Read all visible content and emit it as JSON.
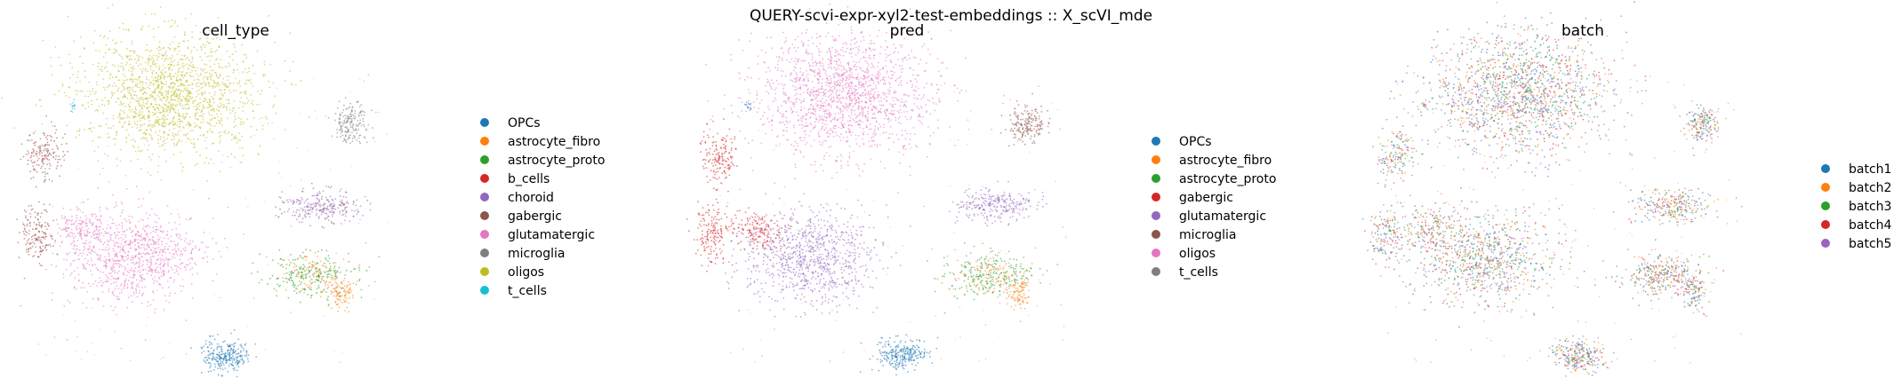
{
  "figure": {
    "suptitle": "QUERY-scvi-expr-xyl2-test-embeddings :: X_scVI_mde"
  },
  "chart_data": [
    {
      "type": "scatter",
      "title": "cell_type",
      "legend_position": "right",
      "legend": [
        {
          "name": "OPCs",
          "color": "#1f77b4"
        },
        {
          "name": "astrocyte_fibro",
          "color": "#ff7f0e"
        },
        {
          "name": "astrocyte_proto",
          "color": "#2ca02c"
        },
        {
          "name": "b_cells",
          "color": "#d62728"
        },
        {
          "name": "choroid",
          "color": "#9467bd"
        },
        {
          "name": "gabergic",
          "color": "#8c564b"
        },
        {
          "name": "glutamatergic",
          "color": "#e377c2"
        },
        {
          "name": "microglia",
          "color": "#7f7f7f"
        },
        {
          "name": "oligos",
          "color": "#bcbd22"
        },
        {
          "name": "t_cells",
          "color": "#17becf"
        }
      ],
      "clusters": [
        {
          "label": "oligos",
          "color": "#bcbd22"
        },
        {
          "label": "glutamatergic",
          "color": "#e377c2"
        },
        {
          "label": "OPCs",
          "color": "#1f77b4"
        },
        {
          "label": "astrocyte_proto",
          "color": "#2ca02c"
        },
        {
          "label": "astrocyte_fibro",
          "color": "#ff7f0e"
        },
        {
          "label": "gabergic",
          "color": "#8c564b"
        },
        {
          "label": "microglia",
          "color": "#7f7f7f"
        },
        {
          "label": "b_cells",
          "color": "#d62728"
        },
        {
          "label": "choroid",
          "color": "#9467bd"
        },
        {
          "label": "t_cells",
          "color": "#17becf"
        }
      ],
      "axes_visible": false
    },
    {
      "type": "scatter",
      "title": "pred",
      "legend_position": "right",
      "legend": [
        {
          "name": "OPCs",
          "color": "#1f77b4"
        },
        {
          "name": "astrocyte_fibro",
          "color": "#ff7f0e"
        },
        {
          "name": "astrocyte_proto",
          "color": "#2ca02c"
        },
        {
          "name": "gabergic",
          "color": "#d62728"
        },
        {
          "name": "glutamatergic",
          "color": "#9467bd"
        },
        {
          "name": "microglia",
          "color": "#8c564b"
        },
        {
          "name": "oligos",
          "color": "#e377c2"
        },
        {
          "name": "t_cells",
          "color": "#7f7f7f"
        }
      ],
      "axes_visible": false
    },
    {
      "type": "scatter",
      "title": "batch",
      "legend_position": "right",
      "legend": [
        {
          "name": "batch1",
          "color": "#1f77b4"
        },
        {
          "name": "batch2",
          "color": "#ff7f0e"
        },
        {
          "name": "batch3",
          "color": "#2ca02c"
        },
        {
          "name": "batch4",
          "color": "#d62728"
        },
        {
          "name": "batch5",
          "color": "#9467bd"
        }
      ],
      "axes_visible": false
    }
  ]
}
